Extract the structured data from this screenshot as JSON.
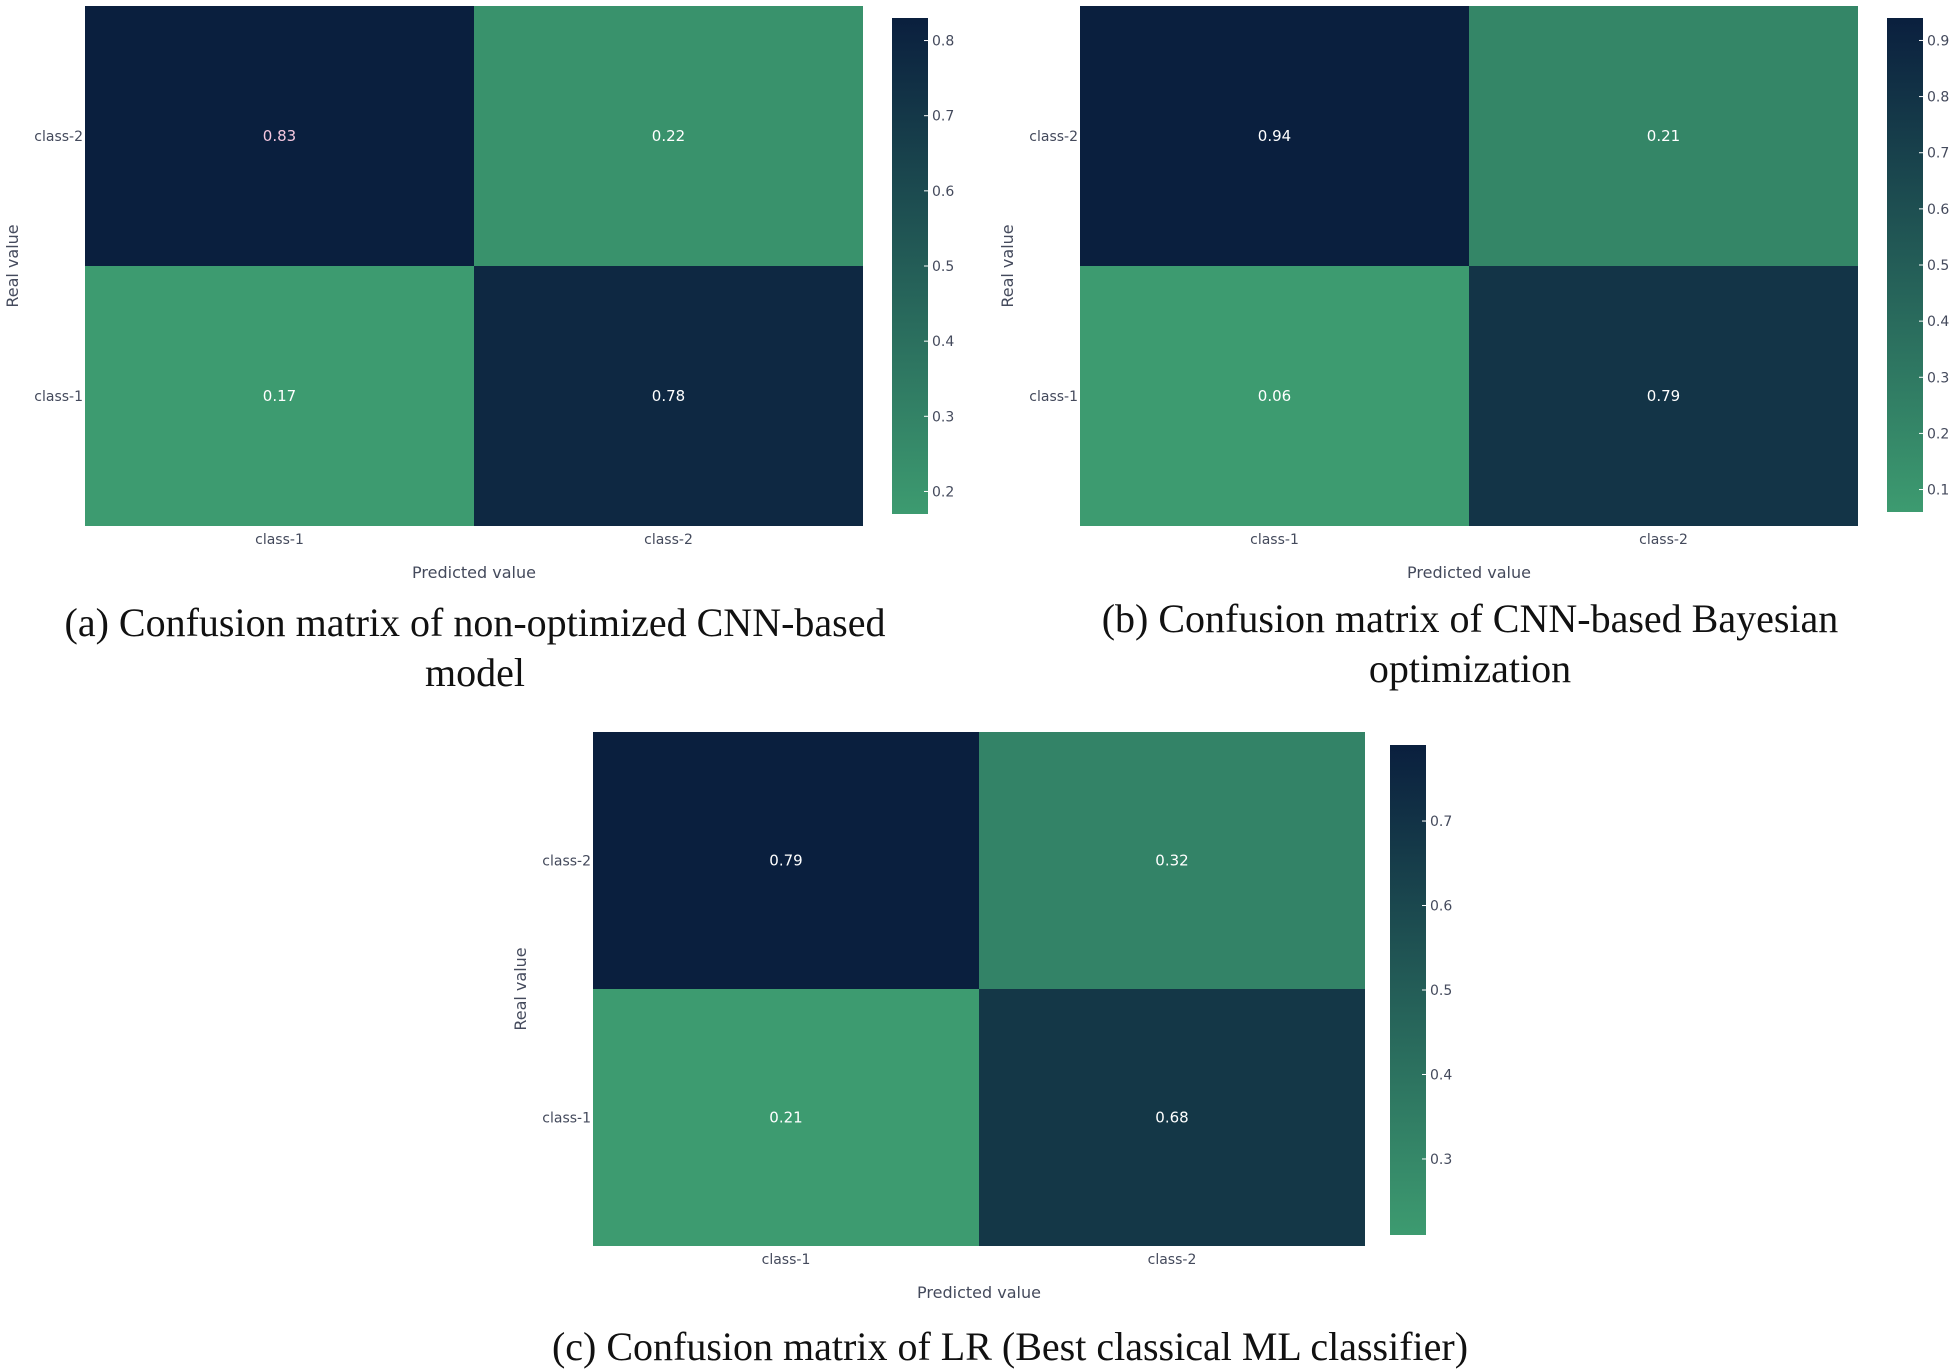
{
  "chart_data": [
    {
      "type": "heatmap",
      "caption": "(a) Confusion matrix of non-optimized CNN-based model",
      "xlabel": "Predicted value",
      "ylabel": "Real value",
      "x_categories": [
        "class-1",
        "class-2"
      ],
      "y_categories": [
        "class-1",
        "class-2"
      ],
      "z": [
        [
          0.17,
          0.78
        ],
        [
          0.83,
          0.22
        ]
      ],
      "cell_labels": [
        [
          "0.17",
          "0.78"
        ],
        [
          "0.83",
          "0.22"
        ]
      ],
      "colorbar": {
        "range": [
          0.17,
          0.83
        ],
        "ticks": [
          0.2,
          0.3,
          0.4,
          0.5,
          0.6,
          0.7,
          0.8
        ],
        "tick_labels": [
          "0.2",
          "0.3",
          "0.4",
          "0.5",
          "0.6",
          "0.7",
          "0.8"
        ],
        "low_color": "#3d9b70",
        "high_color": "#0a1f3e"
      }
    },
    {
      "type": "heatmap",
      "caption": "(b) Confusion matrix of CNN-based Bayesian optimization",
      "xlabel": "Predicted value",
      "ylabel": "Real value",
      "x_categories": [
        "class-1",
        "class-2"
      ],
      "y_categories": [
        "class-1",
        "class-2"
      ],
      "z": [
        [
          0.06,
          0.79
        ],
        [
          0.94,
          0.21
        ]
      ],
      "cell_labels": [
        [
          "0.06",
          "0.79"
        ],
        [
          "0.94",
          "0.21"
        ]
      ],
      "colorbar": {
        "range": [
          0.06,
          0.94
        ],
        "ticks": [
          0.1,
          0.2,
          0.3,
          0.4,
          0.5,
          0.6,
          0.7,
          0.8,
          0.9
        ],
        "tick_labels": [
          "0.1",
          "0.2",
          "0.3",
          "0.4",
          "0.5",
          "0.6",
          "0.7",
          "0.8",
          "0.9"
        ],
        "low_color": "#3d9b70",
        "high_color": "#0a1f3e"
      }
    },
    {
      "type": "heatmap",
      "caption": "(c) Confusion matrix of LR (Best classical ML classifier)",
      "xlabel": "Predicted value",
      "ylabel": "Real value",
      "x_categories": [
        "class-1",
        "class-2"
      ],
      "y_categories": [
        "class-1",
        "class-2"
      ],
      "z": [
        [
          0.21,
          0.68
        ],
        [
          0.79,
          0.32
        ]
      ],
      "cell_labels": [
        [
          "0.21",
          "0.68"
        ],
        [
          "0.79",
          "0.32"
        ]
      ],
      "colorbar": {
        "range": [
          0.21,
          0.79
        ],
        "ticks": [
          0.3,
          0.4,
          0.5,
          0.6,
          0.7
        ],
        "tick_labels": [
          "0.3",
          "0.4",
          "0.5",
          "0.6",
          "0.7"
        ],
        "low_color": "#3d9b70",
        "high_color": "#0a1f3e"
      }
    }
  ]
}
